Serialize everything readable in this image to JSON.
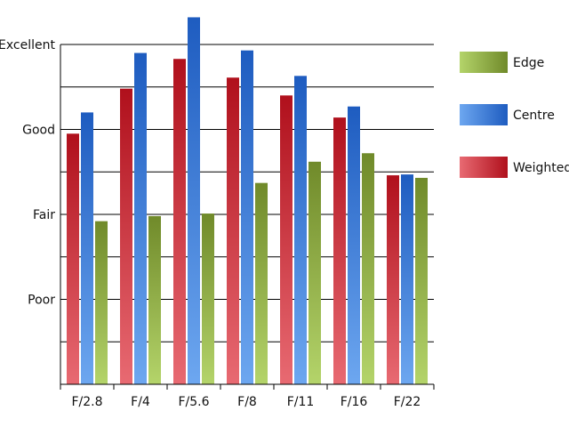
{
  "chart_data": {
    "type": "bar",
    "title": "",
    "xlabel": "",
    "ylabel": "",
    "categories": [
      "F/2.8",
      "F/4",
      "F/5.6",
      "F/8",
      "F/11",
      "F/16",
      "F/22"
    ],
    "y_tick_labels": [
      {
        "value": 1,
        "label": "Poor"
      },
      {
        "value": 2,
        "label": "Fair"
      },
      {
        "value": 3,
        "label": "Good"
      },
      {
        "value": 4,
        "label": "Excellent"
      }
    ],
    "ylim": [
      0,
      4
    ],
    "grid": true,
    "legend_position": "right",
    "series": [
      {
        "name": "Weighted",
        "colors": {
          "light": "#e86a72",
          "dark": "#b0101c"
        },
        "values": [
          2.95,
          3.48,
          3.83,
          3.61,
          3.4,
          3.14,
          2.46
        ]
      },
      {
        "name": "Centre",
        "colors": {
          "light": "#6da7f0",
          "dark": "#1e5cc0"
        },
        "values": [
          3.2,
          3.9,
          4.32,
          3.93,
          3.63,
          3.27,
          2.47
        ]
      },
      {
        "name": "Edge",
        "colors": {
          "light": "#b4d46a",
          "dark": "#708a2a"
        },
        "values": [
          1.92,
          1.98,
          2.01,
          2.37,
          2.62,
          2.72,
          2.43
        ]
      }
    ],
    "legend_order": [
      "Edge",
      "Centre",
      "Weighted"
    ]
  }
}
